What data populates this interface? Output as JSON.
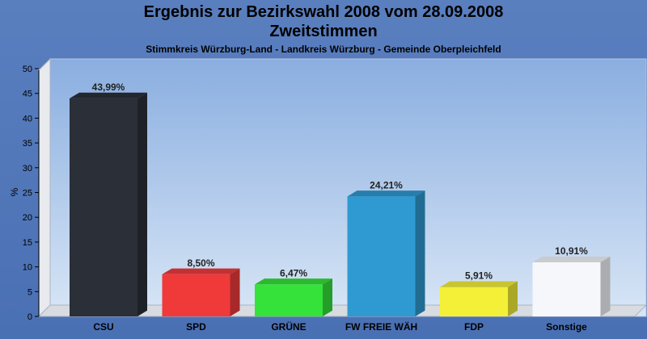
{
  "chart_data": {
    "type": "bar",
    "title": "Ergebnis zur Bezirkswahl 2008 vom 28.09.2008",
    "subtitle": "Zweitstimmen",
    "caption": "Stimmkreis Würzburg-Land - Landkreis Würzburg - Gemeinde Oberpleichfeld",
    "ylabel": "%",
    "xlabel": "",
    "ylim": [
      0,
      50
    ],
    "yticks": [
      "0",
      "5",
      "10",
      "15",
      "20",
      "25",
      "30",
      "35",
      "40",
      "45",
      "50"
    ],
    "grid": false,
    "categories": [
      "CSU",
      "SPD",
      "GRÜNE",
      "FW FREIE WÄH",
      "FDP",
      "Sonstige"
    ],
    "values": [
      43.99,
      8.5,
      6.47,
      24.21,
      5.91,
      10.91
    ],
    "value_labels": [
      "43,99%",
      "8,50%",
      "6,47%",
      "24,21%",
      "5,91%",
      "10,91%"
    ],
    "colors": [
      "#2b2f38",
      "#f03a3a",
      "#35e23a",
      "#2f9ad2",
      "#f4f038",
      "#f5f7fb"
    ]
  }
}
